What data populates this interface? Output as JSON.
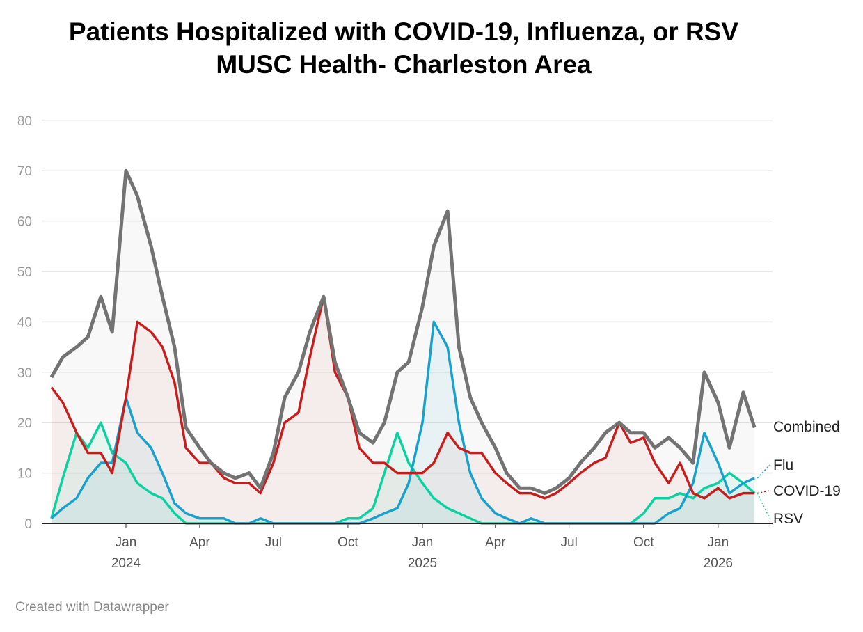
{
  "chart_data": {
    "type": "line",
    "title": "Patients Hospitalized with COVID-19, Influenza, or RSV",
    "subtitle": "MUSC Health- Charleston Area",
    "ylim": [
      0,
      85
    ],
    "yticks": [
      0,
      10,
      20,
      30,
      40,
      50,
      60,
      70,
      80
    ],
    "grid": true,
    "legend_placement": "right (direct labels at line ends)",
    "xticks": [
      {
        "date": "2024-01-01",
        "label": "Jan",
        "year": "2024"
      },
      {
        "date": "2024-04-01",
        "label": "Apr",
        "year": ""
      },
      {
        "date": "2024-07-01",
        "label": "Jul",
        "year": ""
      },
      {
        "date": "2024-10-01",
        "label": "Oct",
        "year": ""
      },
      {
        "date": "2025-01-01",
        "label": "Jan",
        "year": "2025"
      },
      {
        "date": "2025-04-01",
        "label": "Apr",
        "year": ""
      },
      {
        "date": "2025-07-01",
        "label": "Jul",
        "year": ""
      },
      {
        "date": "2025-10-01",
        "label": "Oct",
        "year": ""
      },
      {
        "date": "2026-01-01",
        "label": "Jan",
        "year": "2026"
      }
    ],
    "x": [
      "2023-10-01",
      "2023-10-15",
      "2023-11-01",
      "2023-11-15",
      "2023-12-01",
      "2023-12-15",
      "2024-01-01",
      "2024-01-15",
      "2024-02-01",
      "2024-02-15",
      "2024-03-01",
      "2024-03-15",
      "2024-04-01",
      "2024-04-15",
      "2024-05-01",
      "2024-05-15",
      "2024-06-01",
      "2024-06-15",
      "2024-07-01",
      "2024-07-15",
      "2024-08-01",
      "2024-08-15",
      "2024-09-01",
      "2024-09-15",
      "2024-10-01",
      "2024-10-15",
      "2024-11-01",
      "2024-11-15",
      "2024-12-01",
      "2024-12-15",
      "2025-01-01",
      "2025-01-15",
      "2025-02-01",
      "2025-02-15",
      "2025-03-01",
      "2025-03-15",
      "2025-04-01",
      "2025-04-15",
      "2025-05-01",
      "2025-05-15",
      "2025-06-01",
      "2025-06-15",
      "2025-07-01",
      "2025-07-15",
      "2025-08-01",
      "2025-08-15",
      "2025-09-01",
      "2025-09-15",
      "2025-10-01",
      "2025-10-15",
      "2025-11-01",
      "2025-11-15",
      "2025-12-01",
      "2025-12-15",
      "2026-01-01",
      "2026-01-15",
      "2026-02-01",
      "2026-02-15"
    ],
    "series": [
      {
        "name": "Combined",
        "color": "#737373",
        "values": [
          29,
          33,
          35,
          37,
          45,
          38,
          70,
          65,
          55,
          45,
          35,
          19,
          15,
          12,
          10,
          9,
          10,
          7,
          14,
          25,
          30,
          38,
          45,
          32,
          25,
          18,
          16,
          20,
          30,
          32,
          43,
          55,
          62,
          35,
          25,
          20,
          15,
          10,
          7,
          7,
          6,
          7,
          9,
          12,
          15,
          18,
          20,
          18,
          18,
          15,
          17,
          15,
          12,
          30,
          24,
          15,
          26,
          19
        ]
      },
      {
        "name": "Flu",
        "color": "#18a1cd",
        "values": [
          1,
          3,
          5,
          9,
          12,
          12,
          25,
          18,
          15,
          10,
          4,
          2,
          1,
          1,
          1,
          0,
          0,
          1,
          0,
          0,
          0,
          0,
          0,
          0,
          0,
          0,
          1,
          2,
          3,
          8,
          20,
          40,
          35,
          20,
          10,
          5,
          2,
          1,
          0,
          1,
          0,
          0,
          0,
          0,
          0,
          0,
          0,
          0,
          0,
          0,
          2,
          3,
          8,
          18,
          12,
          6,
          8,
          9
        ]
      },
      {
        "name": "COVID-19",
        "color": "#c71e1d",
        "values": [
          27,
          24,
          18,
          14,
          14,
          10,
          25,
          40,
          38,
          35,
          28,
          15,
          12,
          12,
          9,
          8,
          8,
          6,
          12,
          20,
          22,
          33,
          45,
          30,
          25,
          15,
          12,
          12,
          10,
          10,
          10,
          12,
          18,
          15,
          14,
          14,
          10,
          8,
          6,
          6,
          5,
          6,
          8,
          10,
          12,
          13,
          20,
          16,
          17,
          12,
          8,
          12,
          6,
          5,
          7,
          5,
          6,
          6
        ]
      },
      {
        "name": "RSV",
        "color": "#09d2a0",
        "values": [
          1,
          9,
          18,
          15,
          20,
          14,
          12,
          8,
          6,
          5,
          2,
          0,
          0,
          0,
          0,
          0,
          0,
          0,
          0,
          0,
          0,
          0,
          0,
          0,
          1,
          1,
          3,
          10,
          18,
          12,
          8,
          5,
          3,
          2,
          1,
          0,
          0,
          0,
          0,
          0,
          0,
          0,
          0,
          0,
          0,
          0,
          0,
          0,
          2,
          5,
          5,
          6,
          5,
          7,
          8,
          10,
          8,
          6
        ]
      }
    ]
  },
  "footer": "Created with Datawrapper"
}
